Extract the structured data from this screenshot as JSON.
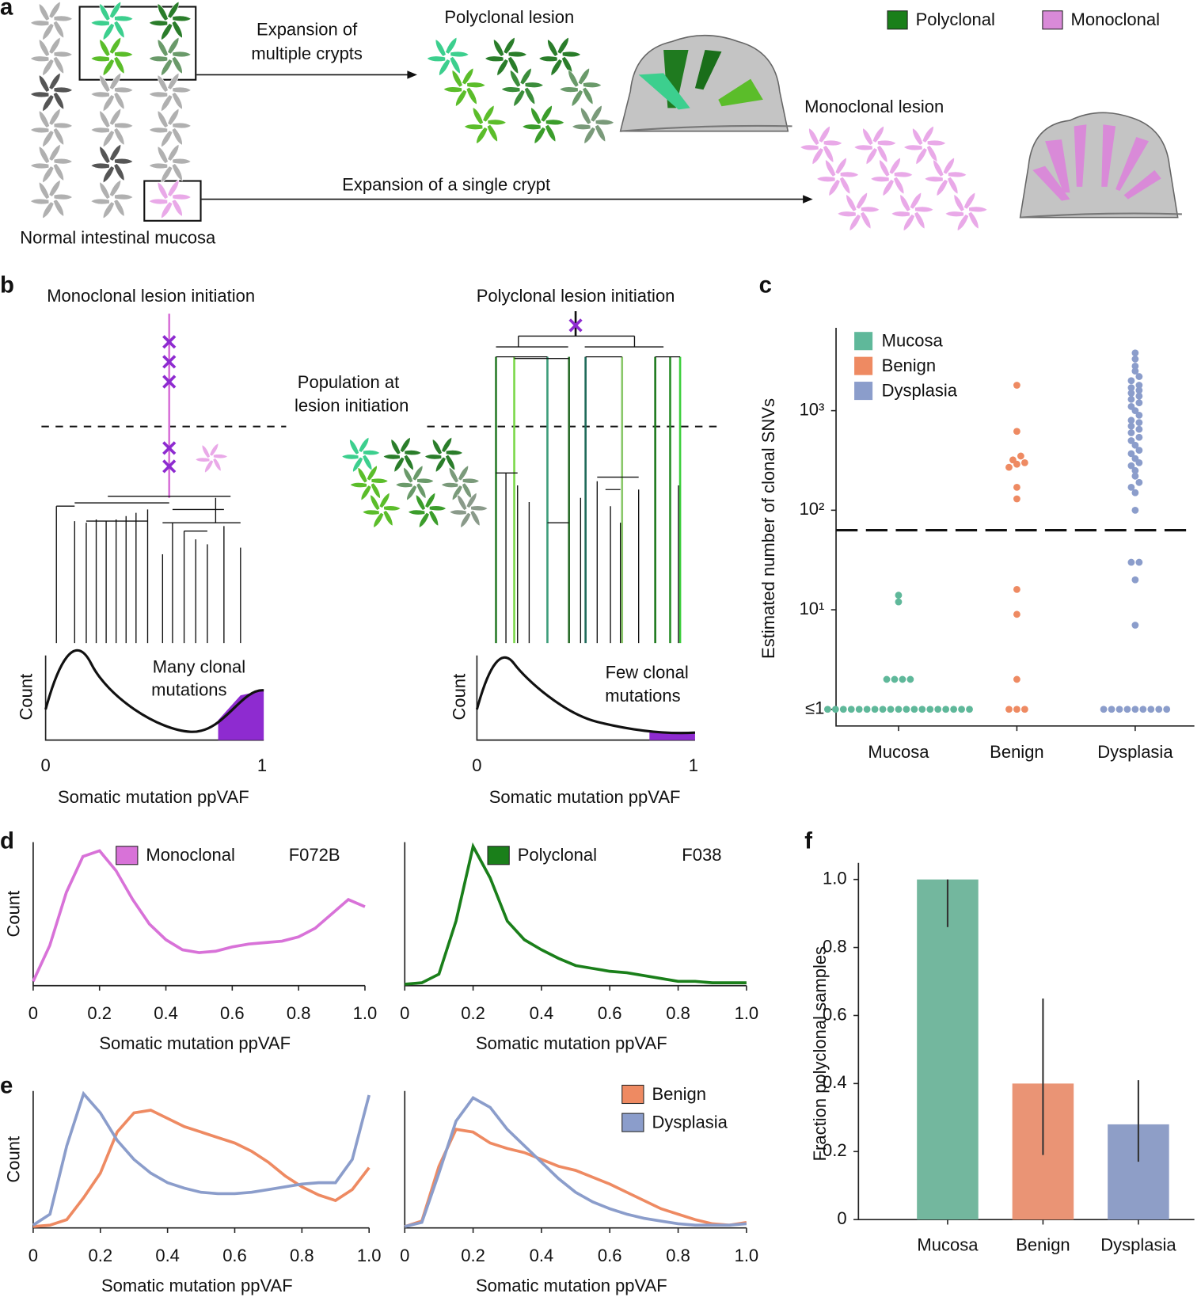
{
  "panel_labels": [
    "a",
    "b",
    "c",
    "d",
    "e",
    "f"
  ],
  "panel_a": {
    "expansion_multiple": [
      "Expansion of",
      "multiple crypts"
    ],
    "polyclonal_lesion": "Polyclonal lesion",
    "monoclonal_lesion": "Monoclonal lesion",
    "expansion_single": "Expansion of a single crypt",
    "normal_mucosa": "Normal intestinal mucosa",
    "legend": [
      {
        "name": "Polyclonal",
        "color": "#1a7f1a"
      },
      {
        "name": "Monoclonal",
        "color": "#d98ad8"
      }
    ]
  },
  "panel_b": {
    "monoclonal_title": "Monoclonal lesion initiation",
    "polyclonal_title": "Polyclonal lesion initiation",
    "population": [
      "Population at",
      "lesion initiation"
    ],
    "many_clonal": [
      "Many clonal",
      "mutations"
    ],
    "few_clonal": [
      "Few clonal",
      "mutations"
    ],
    "y_label": "Count",
    "x_ticks": [
      0,
      1
    ],
    "x_label": "Somatic mutation ppVAF"
  },
  "chart_data": [
    {
      "type": "scatter",
      "y_label": "Estimated number of clonal SNVs",
      "categories": [
        "Mucosa",
        "Benign",
        "Dysplasia"
      ],
      "yscale": "log",
      "ylim": [
        0.68,
        6800
      ],
      "yticks": [
        {
          "value": 1,
          "label": "≤1"
        },
        {
          "value": 10,
          "label": "10¹"
        },
        {
          "value": 100,
          "label": "10²"
        },
        {
          "value": 1000,
          "label": "10³"
        }
      ],
      "threshold": 63,
      "legend": "upper left",
      "series": [
        {
          "name": "Mucosa",
          "color": "#5fb89a",
          "values": [
            1,
            1,
            1,
            1,
            1,
            1,
            1,
            1,
            1,
            1,
            1,
            1,
            1,
            1,
            1,
            1,
            1,
            1,
            1,
            2,
            2,
            2,
            2,
            12,
            14
          ]
        },
        {
          "name": "Benign",
          "color": "#ee8a62",
          "values": [
            1,
            1,
            1,
            2,
            9,
            16,
            130,
            170,
            270,
            290,
            300,
            320,
            350,
            620,
            1800
          ]
        },
        {
          "name": "Dysplasia",
          "color": "#8b9dcb",
          "values": [
            1,
            1,
            1,
            1,
            1,
            1,
            1,
            1,
            1,
            7,
            20,
            30,
            30,
            100,
            150,
            170,
            190,
            220,
            250,
            280,
            300,
            330,
            370,
            400,
            450,
            500,
            540,
            600,
            650,
            700,
            760,
            800,
            900,
            1000,
            1100,
            1200,
            1300,
            1400,
            1500,
            1600,
            1700,
            1800,
            2000,
            2200,
            2500,
            2800,
            3300,
            3800
          ]
        }
      ]
    },
    {
      "type": "line",
      "x_label": "Somatic mutation ppVAF",
      "y_label": "Count",
      "annotation": "F072B",
      "legend": "upper center",
      "xlim": [
        0,
        1
      ],
      "ylim": [
        0,
        1
      ],
      "xticks": [
        0,
        0.2,
        0.4,
        0.6,
        0.8,
        {
          "value": 1,
          "label": "1.0"
        }
      ],
      "x": [
        0,
        0.05,
        0.1,
        0.15,
        0.2,
        0.25,
        0.3,
        0.35,
        0.4,
        0.45,
        0.5,
        0.55,
        0.6,
        0.65,
        0.7,
        0.75,
        0.8,
        0.85,
        0.9,
        0.95,
        1
      ],
      "series": [
        {
          "name": "Monoclonal",
          "color": "#d872d8",
          "values": [
            0.03,
            0.28,
            0.65,
            0.9,
            0.94,
            0.8,
            0.6,
            0.43,
            0.32,
            0.25,
            0.23,
            0.24,
            0.27,
            0.29,
            0.3,
            0.31,
            0.34,
            0.4,
            0.5,
            0.6,
            0.55
          ]
        }
      ]
    },
    {
      "type": "line",
      "x_label": "Somatic mutation ppVAF",
      "annotation": "F038",
      "legend": "upper center",
      "xlim": [
        0,
        1
      ],
      "ylim": [
        0,
        1
      ],
      "xticks": [
        0,
        0.2,
        0.4,
        0.6,
        0.8,
        {
          "value": 1,
          "label": "1.0"
        }
      ],
      "x": [
        0,
        0.05,
        0.1,
        0.15,
        0.2,
        0.25,
        0.3,
        0.35,
        0.4,
        0.45,
        0.5,
        0.55,
        0.6,
        0.65,
        0.7,
        0.75,
        0.8,
        0.85,
        0.9,
        0.95,
        1
      ],
      "series": [
        {
          "name": "Polyclonal",
          "color": "#1a7f1a",
          "values": [
            0.01,
            0.02,
            0.08,
            0.45,
            0.97,
            0.75,
            0.45,
            0.32,
            0.25,
            0.19,
            0.14,
            0.12,
            0.1,
            0.09,
            0.07,
            0.05,
            0.03,
            0.03,
            0.02,
            0.02,
            0.02
          ]
        }
      ]
    },
    {
      "type": "line",
      "x_label": "Somatic mutation ppVAF",
      "y_label": "Count",
      "xlim": [
        0,
        1
      ],
      "ylim": [
        0,
        1
      ],
      "xticks": [
        0,
        0.2,
        0.4,
        0.6,
        0.8,
        {
          "value": 1,
          "label": "1.0"
        }
      ],
      "x": [
        0,
        0.05,
        0.1,
        0.15,
        0.2,
        0.25,
        0.3,
        0.35,
        0.4,
        0.45,
        0.5,
        0.55,
        0.6,
        0.65,
        0.7,
        0.75,
        0.8,
        0.85,
        0.9,
        0.95,
        1
      ],
      "series": [
        {
          "color": "#ee8a62",
          "values": [
            0.01,
            0.02,
            0.06,
            0.22,
            0.4,
            0.7,
            0.84,
            0.86,
            0.8,
            0.74,
            0.7,
            0.66,
            0.62,
            0.56,
            0.48,
            0.38,
            0.3,
            0.24,
            0.2,
            0.28,
            0.44
          ]
        },
        {
          "color": "#8b9dcb",
          "values": [
            0.02,
            0.1,
            0.6,
            0.98,
            0.84,
            0.64,
            0.5,
            0.4,
            0.33,
            0.29,
            0.26,
            0.25,
            0.25,
            0.26,
            0.28,
            0.3,
            0.32,
            0.33,
            0.33,
            0.5,
            0.97
          ]
        }
      ]
    },
    {
      "type": "line",
      "x_label": "Somatic mutation ppVAF",
      "legend": "upper right",
      "xlim": [
        0,
        1
      ],
      "ylim": [
        0,
        1
      ],
      "xticks": [
        0,
        0.2,
        0.4,
        0.6,
        0.8,
        {
          "value": 1,
          "label": "1.0"
        }
      ],
      "x": [
        0,
        0.05,
        0.1,
        0.15,
        0.2,
        0.25,
        0.3,
        0.35,
        0.4,
        0.45,
        0.5,
        0.55,
        0.6,
        0.65,
        0.7,
        0.75,
        0.8,
        0.85,
        0.9,
        0.95,
        1
      ],
      "series": [
        {
          "name": "Benign",
          "color": "#ee8a62",
          "values": [
            0.01,
            0.05,
            0.45,
            0.72,
            0.7,
            0.62,
            0.58,
            0.55,
            0.5,
            0.45,
            0.42,
            0.37,
            0.32,
            0.26,
            0.2,
            0.14,
            0.1,
            0.06,
            0.03,
            0.02,
            0.04
          ]
        },
        {
          "name": "Dysplasia",
          "color": "#8b9dcb",
          "values": [
            0.01,
            0.04,
            0.4,
            0.78,
            0.95,
            0.88,
            0.72,
            0.6,
            0.48,
            0.36,
            0.26,
            0.19,
            0.14,
            0.1,
            0.07,
            0.05,
            0.03,
            0.02,
            0.02,
            0.02,
            0.03
          ]
        }
      ]
    },
    {
      "type": "bar",
      "y_label": "Fraction polyclonal samples",
      "categories": [
        "Mucosa",
        "Benign",
        "Dysplasia"
      ],
      "values": [
        1.0,
        0.4,
        0.28
      ],
      "ci_low": [
        0.86,
        0.19,
        0.17
      ],
      "ci_high": [
        1.0,
        0.65,
        0.41
      ],
      "colors": [
        "#73b79e",
        "#ea9475",
        "#8e9ec7"
      ],
      "ylim": [
        0,
        1
      ],
      "yticks": [
        0,
        0.2,
        0.4,
        0.6,
        0.8,
        {
          "value": 1,
          "label": "1.0"
        }
      ]
    }
  ]
}
